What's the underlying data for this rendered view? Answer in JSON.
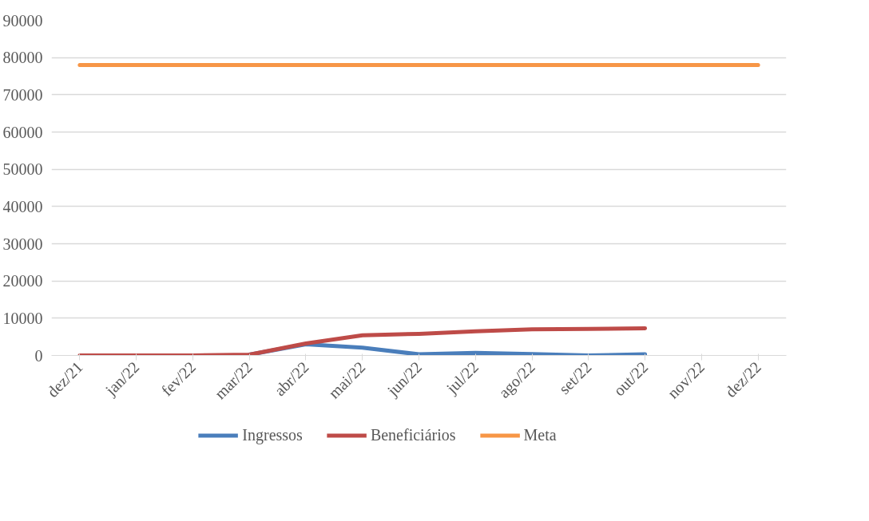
{
  "chart_data": {
    "type": "line",
    "categories": [
      "dez/21",
      "jan/22",
      "fev/22",
      "mar/22",
      "abr/22",
      "mai/22",
      "jun/22",
      "jul/22",
      "ago/22",
      "set/22",
      "out/22",
      "nov/22",
      "dez/22"
    ],
    "series": [
      {
        "name": "Ingressos",
        "color": "#4a7ebb",
        "values": [
          null,
          null,
          null,
          200,
          3000,
          2100,
          300,
          700,
          400,
          0,
          300,
          null,
          null
        ]
      },
      {
        "name": "Beneficiários",
        "color": "#be4b48",
        "values": [
          0,
          0,
          0,
          200,
          3200,
          5400,
          5800,
          6500,
          7000,
          7100,
          7300,
          null,
          null
        ]
      },
      {
        "name": "Meta",
        "color": "#f79646",
        "values": [
          78000,
          78000,
          78000,
          78000,
          78000,
          78000,
          78000,
          78000,
          78000,
          78000,
          78000,
          78000,
          78000
        ]
      }
    ],
    "ylim": [
      0,
      90000
    ],
    "yticks": [
      0,
      10000,
      20000,
      30000,
      40000,
      50000,
      60000,
      70000,
      80000,
      90000
    ],
    "grid": "y",
    "legend": "bottom",
    "marker": "none",
    "line_style": "solid"
  }
}
